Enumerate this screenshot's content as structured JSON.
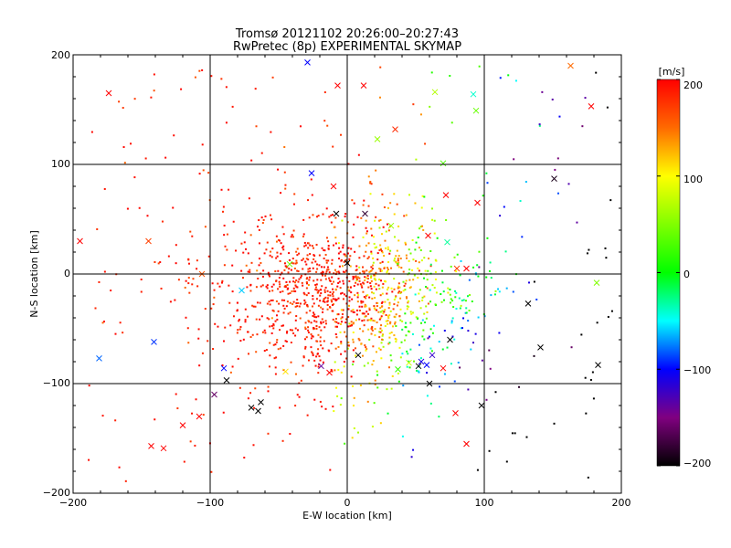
{
  "chart_data": {
    "type": "scatter",
    "title": "Tromsø 20121102 20:26:00–20:27:43",
    "subtitle": "RwPretec (8p) EXPERIMENTAL SKYMAP",
    "xlabel": "E-W location [km]",
    "ylabel": "N-S location [km]",
    "xlim": [
      -200,
      200
    ],
    "ylim": [
      -200,
      200
    ],
    "x_ticks": [
      "−200",
      "−100",
      "0",
      "100",
      "200"
    ],
    "y_ticks": [
      "−200",
      "−100",
      "0",
      "100",
      "200"
    ],
    "grid_values": [
      -100,
      0,
      100
    ],
    "colorbar": {
      "label": "[m/s]",
      "range": [
        -200,
        200
      ],
      "tick_labels": [
        "200",
        "100",
        "0",
        "−100",
        "−200"
      ]
    },
    "cross_markers": [
      {
        "x": -174,
        "y": 165,
        "v": 200
      },
      {
        "x": -29,
        "y": 193,
        "v": -100
      },
      {
        "x": -7,
        "y": 172,
        "v": 200
      },
      {
        "x": 12,
        "y": 172,
        "v": 200
      },
      {
        "x": 64,
        "y": 166,
        "v": 70
      },
      {
        "x": 92,
        "y": 164,
        "v": -40
      },
      {
        "x": 94,
        "y": 149,
        "v": 40
      },
      {
        "x": 163,
        "y": 190,
        "v": 150
      },
      {
        "x": 178,
        "y": 153,
        "v": 200
      },
      {
        "x": 35,
        "y": 132,
        "v": 180
      },
      {
        "x": 22,
        "y": 123,
        "v": 60
      },
      {
        "x": -26,
        "y": 92,
        "v": -100
      },
      {
        "x": -10,
        "y": 80,
        "v": 200
      },
      {
        "x": 70,
        "y": 101,
        "v": 30
      },
      {
        "x": 72,
        "y": 72,
        "v": 200
      },
      {
        "x": 95,
        "y": 65,
        "v": 200
      },
      {
        "x": 151,
        "y": 87,
        "v": -190
      },
      {
        "x": 13,
        "y": 55,
        "v": -180
      },
      {
        "x": -8,
        "y": 55,
        "v": -200
      },
      {
        "x": 32,
        "y": 44,
        "v": 60
      },
      {
        "x": 59,
        "y": 35,
        "v": 200
      },
      {
        "x": 73,
        "y": 29,
        "v": -30
      },
      {
        "x": -195,
        "y": 30,
        "v": 200
      },
      {
        "x": -145,
        "y": 30,
        "v": 170
      },
      {
        "x": -106,
        "y": 0,
        "v": 160
      },
      {
        "x": -42,
        "y": 9,
        "v": 40
      },
      {
        "x": 0,
        "y": 10,
        "v": -200
      },
      {
        "x": 80,
        "y": 5,
        "v": 170
      },
      {
        "x": 87,
        "y": 5,
        "v": 200
      },
      {
        "x": 182,
        "y": -8,
        "v": 50
      },
      {
        "x": 132,
        "y": -27,
        "v": -200
      },
      {
        "x": -141,
        "y": -62,
        "v": -90
      },
      {
        "x": -181,
        "y": -77,
        "v": -80
      },
      {
        "x": -90,
        "y": -86,
        "v": -100
      },
      {
        "x": -77,
        "y": -15,
        "v": -60
      },
      {
        "x": -19,
        "y": -84,
        "v": -140
      },
      {
        "x": -13,
        "y": -90,
        "v": 200
      },
      {
        "x": -45,
        "y": -89,
        "v": 110
      },
      {
        "x": -88,
        "y": -97,
        "v": -200
      },
      {
        "x": -97,
        "y": -110,
        "v": -160
      },
      {
        "x": -63,
        "y": -117,
        "v": -200
      },
      {
        "x": -65,
        "y": -125,
        "v": -200
      },
      {
        "x": -70,
        "y": -122,
        "v": -200
      },
      {
        "x": -108,
        "y": -130,
        "v": 200
      },
      {
        "x": -120,
        "y": -138,
        "v": 200
      },
      {
        "x": -143,
        "y": -157,
        "v": 200
      },
      {
        "x": -134,
        "y": -159,
        "v": 200
      },
      {
        "x": 52,
        "y": -84,
        "v": -200
      },
      {
        "x": 58,
        "y": -83,
        "v": -100
      },
      {
        "x": 54,
        "y": -80,
        "v": -110
      },
      {
        "x": 62,
        "y": -74,
        "v": -120
      },
      {
        "x": 75,
        "y": -60,
        "v": -200
      },
      {
        "x": 60,
        "y": -100,
        "v": -200
      },
      {
        "x": 98,
        "y": -120,
        "v": -200
      },
      {
        "x": 79,
        "y": -127,
        "v": 200
      },
      {
        "x": 87,
        "y": -155,
        "v": 200
      },
      {
        "x": 141,
        "y": -67,
        "v": -200
      },
      {
        "x": 183,
        "y": -83,
        "v": -200
      },
      {
        "x": 70,
        "y": -86,
        "v": 200
      },
      {
        "x": 45,
        "y": -81,
        "v": 80
      },
      {
        "x": 37,
        "y": -87,
        "v": 20
      },
      {
        "x": 8,
        "y": -74,
        "v": -200
      }
    ]
  }
}
